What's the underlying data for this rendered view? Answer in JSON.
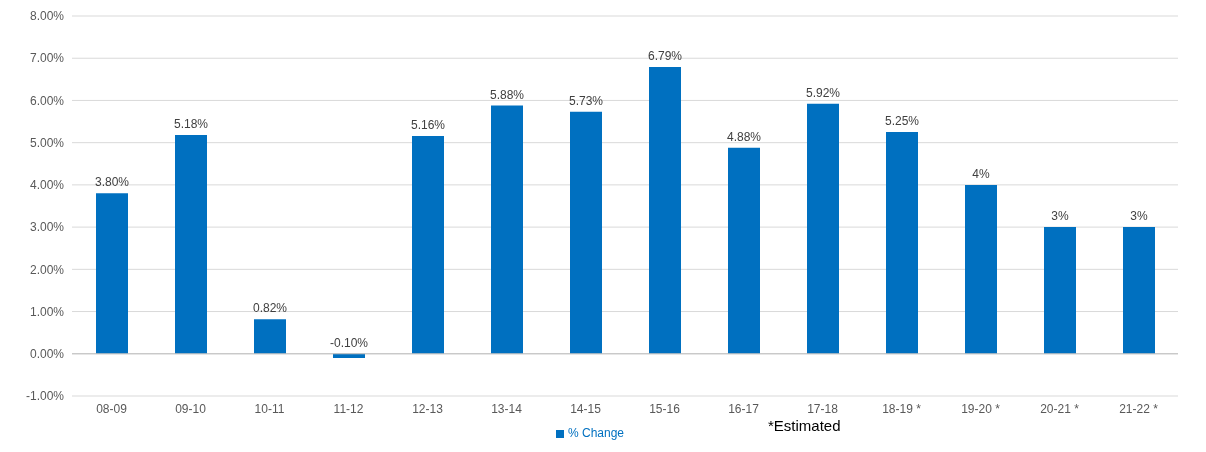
{
  "chart_data": {
    "type": "bar",
    "categories": [
      "08-09",
      "09-10",
      "10-11",
      "11-12",
      "12-13",
      "13-14",
      "14-15",
      "15-16",
      "16-17",
      "17-18",
      "18-19 *",
      "19-20 *",
      "20-21 *",
      "21-22 *"
    ],
    "series": [
      {
        "name": "% Change",
        "color": "#0070c0",
        "values": [
          3.8,
          5.18,
          0.82,
          -0.1,
          5.16,
          5.88,
          5.73,
          6.79,
          4.88,
          5.92,
          5.25,
          4,
          3,
          3
        ],
        "value_labels": [
          "3.80%",
          "5.18%",
          "0.82%",
          "-0.10%",
          "5.16%",
          "5.88%",
          "5.73%",
          "6.79%",
          "4.88%",
          "5.92%",
          "5.25%",
          "4%",
          "3%",
          "3%"
        ]
      }
    ],
    "ylim": [
      -1,
      8
    ],
    "yticks": [
      {
        "value": -1,
        "label": "-1.00%"
      },
      {
        "value": 0,
        "label": "0.00%"
      },
      {
        "value": 1,
        "label": "1.00%"
      },
      {
        "value": 2,
        "label": "2.00%"
      },
      {
        "value": 3,
        "label": "3.00%"
      },
      {
        "value": 4,
        "label": "4.00%"
      },
      {
        "value": 5,
        "label": "5.00%"
      },
      {
        "value": 6,
        "label": "6.00%"
      },
      {
        "value": 7,
        "label": "7.00%"
      },
      {
        "value": 8,
        "label": "8.00%"
      }
    ],
    "grid": "y",
    "legend": "bottom",
    "annotations": [
      "*Estimated"
    ]
  }
}
